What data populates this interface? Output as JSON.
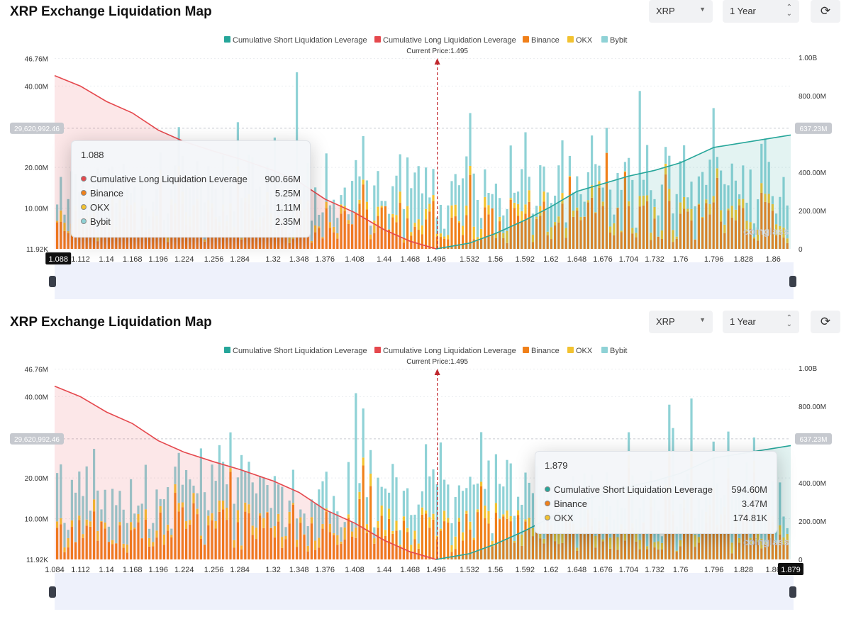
{
  "legend": [
    {
      "label": "Cumulative Short Liquidation Leverage",
      "color": "#26a69a"
    },
    {
      "label": "Cumulative Long Liquidation Leverage",
      "color": "#e5484d"
    },
    {
      "label": "Binance",
      "color": "#f0801a"
    },
    {
      "label": "OKX",
      "color": "#f2c230"
    },
    {
      "label": "Bybit",
      "color": "#8fd2d6"
    }
  ],
  "panels": [
    {
      "title": "XRP Exchange Liquidation Map",
      "coin": "XRP",
      "range": "1 Year",
      "current_price_label": "Current Price:1.495",
      "y_left_ticks": [
        "46.76M",
        "40.00M",
        "20.00M",
        "10.00M",
        "11.92K"
      ],
      "y_right_ticks": [
        "1.00B",
        "800.00M",
        "400.00M",
        "200.00M",
        "0"
      ],
      "y_left_marker": "29,620,992.46",
      "y_right_marker": "637.23M",
      "x_ticks": [
        "1.112",
        "1.14",
        "1.168",
        "1.196",
        "1.224",
        "1.256",
        "1.284",
        "1.32",
        "1.348",
        "1.376",
        "1.408",
        "1.44",
        "1.468",
        "1.496",
        "1.532",
        "1.56",
        "1.592",
        "1.62",
        "1.648",
        "1.676",
        "1.704",
        "1.732",
        "1.76",
        "1.796",
        "1.828",
        "1.86"
      ],
      "x_hover": "1.088",
      "watermark": "coinglass",
      "tooltip": {
        "title": "1.088",
        "rows": [
          {
            "name": "Cumulative Long Liquidation Leverage",
            "value": "900.66M",
            "color": "#e5484d"
          },
          {
            "name": "Binance",
            "value": "5.25M",
            "color": "#f0801a"
          },
          {
            "name": "OKX",
            "value": "1.11M",
            "color": "#f2c230"
          },
          {
            "name": "Bybit",
            "value": "2.35M",
            "color": "#8fd2d6"
          }
        ]
      }
    },
    {
      "title": "XRP Exchange Liquidation Map",
      "coin": "XRP",
      "range": "1 Year",
      "current_price_label": "Current Price:1.495",
      "y_left_ticks": [
        "46.76M",
        "40.00M",
        "20.00M",
        "10.00M",
        "11.92K"
      ],
      "y_right_ticks": [
        "1.00B",
        "800.00M",
        "400.00M",
        "200.00M",
        "0"
      ],
      "y_left_marker": "29,620,992.46",
      "y_right_marker": "637.23M",
      "x_ticks": [
        "1.084",
        "1.112",
        "1.14",
        "1.168",
        "1.196",
        "1.224",
        "1.256",
        "1.284",
        "1.32",
        "1.348",
        "1.376",
        "1.408",
        "1.44",
        "1.468",
        "1.496",
        "1.532",
        "1.56",
        "1.592",
        "1.62",
        "1.648",
        "1.676",
        "1.704",
        "1.732",
        "1.76",
        "1.796",
        "1.828",
        "1.86"
      ],
      "x_hover": "1.879",
      "watermark": "coinglass",
      "tooltip": {
        "title": "1.879",
        "rows": [
          {
            "name": "Cumulative Short Liquidation Leverage",
            "value": "594.60M",
            "color": "#26a69a"
          },
          {
            "name": "Binance",
            "value": "3.47M",
            "color": "#f0801a"
          },
          {
            "name": "OKX",
            "value": "174.81K",
            "color": "#f2c230"
          }
        ]
      }
    }
  ],
  "chart_data": [
    {
      "type": "bar",
      "title": "XRP Exchange Liquidation Map",
      "x_range": [
        1.084,
        1.879
      ],
      "y_left_range": [
        0,
        46760000
      ],
      "y_right_range": [
        0,
        1000000000
      ],
      "current_price": 1.495,
      "cumulative_long": {
        "x": [
          1.084,
          1.112,
          1.14,
          1.168,
          1.196,
          1.224,
          1.256,
          1.284,
          1.32,
          1.348,
          1.376,
          1.408,
          1.44,
          1.468,
          1.496
        ],
        "y": [
          905000000,
          850000000,
          770000000,
          710000000,
          620000000,
          560000000,
          510000000,
          470000000,
          410000000,
          350000000,
          260000000,
          190000000,
          100000000,
          40000000,
          0
        ]
      },
      "cumulative_short": {
        "x": [
          1.496,
          1.532,
          1.56,
          1.592,
          1.62,
          1.648,
          1.676,
          1.704,
          1.732,
          1.76,
          1.796,
          1.828,
          1.86,
          1.879
        ],
        "y": [
          0,
          30000000,
          80000000,
          150000000,
          220000000,
          300000000,
          340000000,
          380000000,
          410000000,
          450000000,
          530000000,
          555000000,
          580000000,
          594600000
        ]
      },
      "hover": {
        "x": 1.088,
        "cumulative_long": 900660000,
        "binance": 5250000,
        "okx": 1110000,
        "bybit": 2350000
      }
    },
    {
      "type": "bar",
      "title": "XRP Exchange Liquidation Map",
      "x_range": [
        1.084,
        1.879
      ],
      "y_left_range": [
        0,
        46760000
      ],
      "y_right_range": [
        0,
        1000000000
      ],
      "current_price": 1.495,
      "cumulative_long": {
        "x": [
          1.084,
          1.112,
          1.14,
          1.168,
          1.196,
          1.224,
          1.256,
          1.284,
          1.32,
          1.348,
          1.376,
          1.408,
          1.44,
          1.468,
          1.496
        ],
        "y": [
          905000000,
          850000000,
          770000000,
          710000000,
          620000000,
          560000000,
          510000000,
          470000000,
          410000000,
          350000000,
          260000000,
          190000000,
          100000000,
          40000000,
          0
        ]
      },
      "cumulative_short": {
        "x": [
          1.496,
          1.532,
          1.56,
          1.592,
          1.62,
          1.648,
          1.676,
          1.704,
          1.732,
          1.76,
          1.796,
          1.828,
          1.86,
          1.879
        ],
        "y": [
          0,
          30000000,
          80000000,
          150000000,
          220000000,
          300000000,
          340000000,
          380000000,
          410000000,
          450000000,
          530000000,
          555000000,
          580000000,
          594600000
        ]
      },
      "hover": {
        "x": 1.879,
        "cumulative_short": 594600000,
        "binance": 3470000,
        "okx": 174810
      }
    }
  ]
}
